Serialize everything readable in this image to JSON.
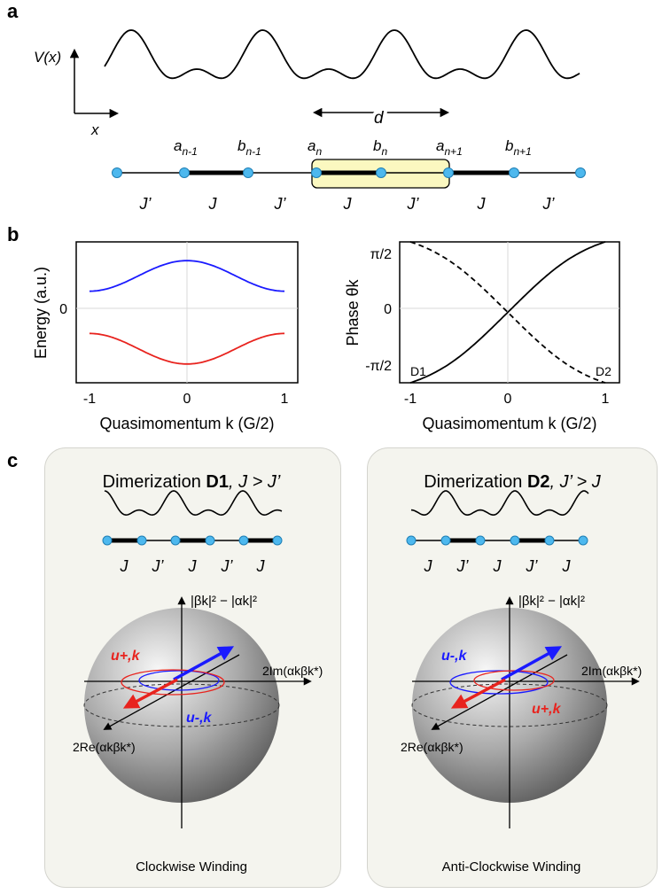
{
  "panels": {
    "a": "a",
    "b": "b",
    "c": "c"
  },
  "panel_a": {
    "potential_label": "V(x)",
    "x_axis_label": "x",
    "period_label": "d",
    "site_labels": [
      {
        "base": "a",
        "sub": "n-1"
      },
      {
        "base": "b",
        "sub": "n-1"
      },
      {
        "base": "a",
        "sub": "n"
      },
      {
        "base": "b",
        "sub": "n"
      },
      {
        "base": "a",
        "sub": "n+1"
      },
      {
        "base": "b",
        "sub": "n+1"
      }
    ],
    "bond_labels": [
      "J’",
      "J",
      "J’",
      "J",
      "J’",
      "J",
      "J’"
    ]
  },
  "chart_data": [
    {
      "type": "line",
      "xlabel": "Quasimomentum k (G/2)",
      "ylabel": "Energy (a.u.)",
      "xticks": [
        "-1",
        "0",
        "1"
      ],
      "yticks": [
        "0"
      ],
      "xlim": [
        -1,
        1
      ],
      "ylim": [
        -1.5,
        1.5
      ],
      "series": [
        {
          "color": "#1a1aff",
          "x": [
            -1,
            -0.5,
            0,
            0.5,
            1
          ],
          "y": [
            0.45,
            0.8,
            1.1,
            0.8,
            0.45
          ]
        },
        {
          "color": "#e8231e",
          "x": [
            -1,
            -0.5,
            0,
            0.5,
            1
          ],
          "y": [
            -0.45,
            -0.8,
            -1.1,
            -0.8,
            -0.45
          ]
        }
      ]
    },
    {
      "type": "line",
      "xlabel": "Quasimomentum k (G/2)",
      "ylabel": "Phase θk",
      "xticks": [
        "-1",
        "0",
        "1"
      ],
      "yticks": [
        "π/2",
        "0",
        "-π/2"
      ],
      "xlim": [
        -1,
        1
      ],
      "ylim": [
        -1.571,
        1.571
      ],
      "annotations": [
        "D1",
        "D2"
      ],
      "series": [
        {
          "style": "solid",
          "x": [
            -1,
            -0.5,
            0,
            0.5,
            1
          ],
          "y": [
            -1.571,
            -0.464,
            0,
            0.464,
            1.571
          ]
        },
        {
          "style": "dashed",
          "x": [
            -1,
            -0.5,
            0,
            0.5,
            1
          ],
          "y": [
            1.571,
            0.464,
            0,
            -0.464,
            -1.571
          ]
        }
      ]
    }
  ],
  "panel_c": {
    "left": {
      "title_prefix": "Dimerization ",
      "title_bold": "D1",
      "title_suffix": ",  J > J’",
      "bond_labels": [
        "J",
        "J’",
        "J",
        "J’",
        "J"
      ],
      "caption": "Clockwise Winding",
      "u_plus": "u+,k",
      "u_minus": "u-,k"
    },
    "right": {
      "title_prefix": "Dimerization ",
      "title_bold": "D2",
      "title_suffix": ",  J’ > J",
      "bond_labels": [
        "J",
        "J’",
        "J",
        "J’",
        "J"
      ],
      "caption": "Anti-Clockwise Winding",
      "u_plus": "u+,k",
      "u_minus": "u-,k"
    },
    "axis_z": "|βk|² − |αk|²",
    "axis_im": "2Im(αkβk*)",
    "axis_re": "2Re(αkβk*)"
  },
  "colors": {
    "site": "#4db8ee",
    "highlight": "#fbf8c0",
    "blue": "#1a1aff",
    "red": "#e8231e",
    "card": "#f4f4ee"
  }
}
